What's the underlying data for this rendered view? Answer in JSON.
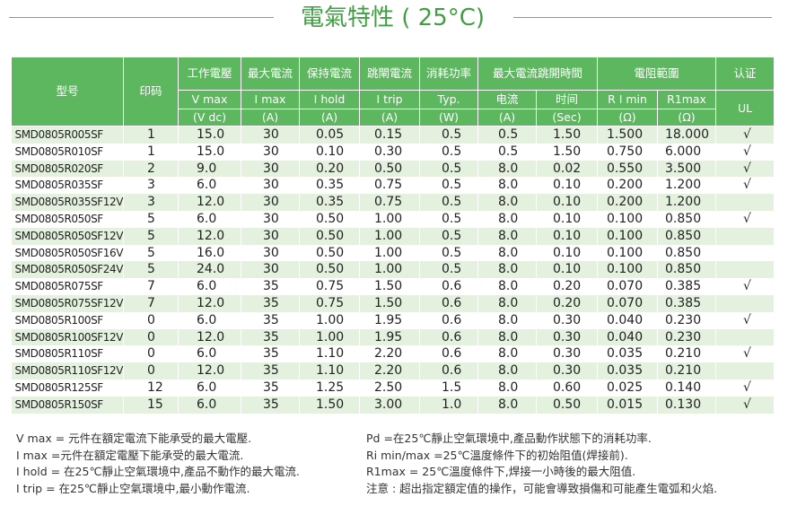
{
  "title": "電氣特性 ( 25°C)",
  "header": {
    "model": "型号",
    "marking": "印码",
    "columns": [
      {
        "name": "工作電壓",
        "symbol": "V max",
        "unit": "(V dc)"
      },
      {
        "name": "最大電流",
        "symbol": "I max",
        "unit": "(A)"
      },
      {
        "name": "保持電流",
        "symbol": "I hold",
        "unit": "(A)"
      },
      {
        "name": "跳閘電流",
        "symbol": "I trip",
        "unit": "(A)"
      },
      {
        "name": "消耗功率",
        "symbol": "Typ.",
        "unit": "(W)"
      }
    ],
    "trip_time": {
      "name": "最大電流跳開時間",
      "current": {
        "symbol": "电流",
        "unit": "(A)"
      },
      "time": {
        "symbol": "时间",
        "unit": "(Sec)"
      }
    },
    "resistance": {
      "name": "電阻範圍",
      "min": {
        "symbol": "R I min",
        "unit": "(Ω)"
      },
      "max": {
        "symbol": "R1max",
        "unit": "(Ω)"
      }
    },
    "cert": {
      "name": "认证",
      "standard": "UL"
    }
  },
  "table": {
    "rows": [
      [
        "SMD0805R005SF",
        "1",
        "15.0",
        "30",
        "0.05",
        "0.15",
        "0.5",
        "0.5",
        "1.50",
        "1.500",
        "18.000",
        "√"
      ],
      [
        "SMD0805R010SF",
        "1",
        "15.0",
        "30",
        "0.10",
        "0.30",
        "0.5",
        "0.5",
        "1.50",
        "0.750",
        "6.000",
        "√"
      ],
      [
        "SMD0805R020SF",
        "2",
        "9.0",
        "30",
        "0.20",
        "0.50",
        "0.5",
        "8.0",
        "0.02",
        "0.550",
        "3.500",
        "√"
      ],
      [
        "SMD0805R035SF",
        "3",
        "6.0",
        "30",
        "0.35",
        "0.75",
        "0.5",
        "8.0",
        "0.10",
        "0.200",
        "1.200",
        "√"
      ],
      [
        "SMD0805R035SF12V",
        "3",
        "12.0",
        "30",
        "0.35",
        "0.75",
        "0.5",
        "8.0",
        "0.10",
        "0.200",
        "1.200"
      ],
      [
        "SMD0805R050SF",
        "5",
        "6.0",
        "30",
        "0.50",
        "1.00",
        "0.5",
        "8.0",
        "0.10",
        "0.100",
        "0.850",
        "√"
      ],
      [
        "SMD0805R050SF12V",
        "5",
        "12.0",
        "30",
        "0.50",
        "1.00",
        "0.5",
        "8.0",
        "0.10",
        "0.100",
        "0.850"
      ],
      [
        "SMD0805R050SF16V",
        "5",
        "16.0",
        "30",
        "0.50",
        "1.00",
        "0.5",
        "8.0",
        "0.10",
        "0.100",
        "0.850"
      ],
      [
        "SMD0805R050SF24V",
        "5",
        "24.0",
        "30",
        "0.50",
        "1.00",
        "0.5",
        "8.0",
        "0.10",
        "0.100",
        "0.850"
      ],
      [
        "SMD0805R075SF",
        "7",
        "6.0",
        "35",
        "0.75",
        "1.50",
        "0.6",
        "8.0",
        "0.20",
        "0.070",
        "0.385",
        "√"
      ],
      [
        "SMD0805R075SF12V",
        "7",
        "12.0",
        "35",
        "0.75",
        "1.50",
        "0.6",
        "8.0",
        "0.20",
        "0.070",
        "0.385"
      ],
      [
        "SMD0805R100SF",
        "0",
        "6.0",
        "35",
        "1.00",
        "1.95",
        "0.6",
        "8.0",
        "0.30",
        "0.040",
        "0.230",
        "√"
      ],
      [
        "SMD0805R100SF12V",
        "0",
        "12.0",
        "35",
        "1.00",
        "1.95",
        "0.6",
        "8.0",
        "0.30",
        "0.040",
        "0.230"
      ],
      [
        "SMD0805R110SF",
        "0",
        "6.0",
        "35",
        "1.10",
        "2.20",
        "0.6",
        "8.0",
        "0.30",
        "0.035",
        "0.210",
        "√"
      ],
      [
        "SMD0805R110SF12V",
        "0",
        "12.0",
        "35",
        "1.10",
        "2.20",
        "0.6",
        "8.0",
        "0.30",
        "0.035",
        "0.210"
      ],
      [
        "SMD0805R125SF",
        "12",
        "6.0",
        "35",
        "1.25",
        "2.50",
        "1.5",
        "8.0",
        "0.60",
        "0.025",
        "0.140",
        "√"
      ],
      [
        "SMD0805R150SF",
        "15",
        "6.0",
        "35",
        "1.50",
        "3.00",
        "1.0",
        "8.0",
        "0.50",
        "0.015",
        "0.130",
        "√"
      ]
    ]
  },
  "notes": {
    "left": [
      "V max = 元件在額定電流下能承受的最大電壓.",
      "I max =元件在額定電壓下能承受的最大電流.",
      "I hold = 在25℃靜止空氣環境中,產品不動作的最大電流.",
      "I trip = 在25℃靜止空氣環境中,最小動作電流."
    ],
    "right": [
      "Pd =在25℃靜止空氣環境中,產品動作狀態下的消耗功率.",
      "Ri min/max =25℃溫度條件下的初始阻值(焊接前).",
      "R1max = 25℃溫度條件下,焊接一小時後的最大阻值.",
      "注意 : 超出指定額定值的操作，可能會導致損傷和可能產生電弧和火焰."
    ]
  }
}
